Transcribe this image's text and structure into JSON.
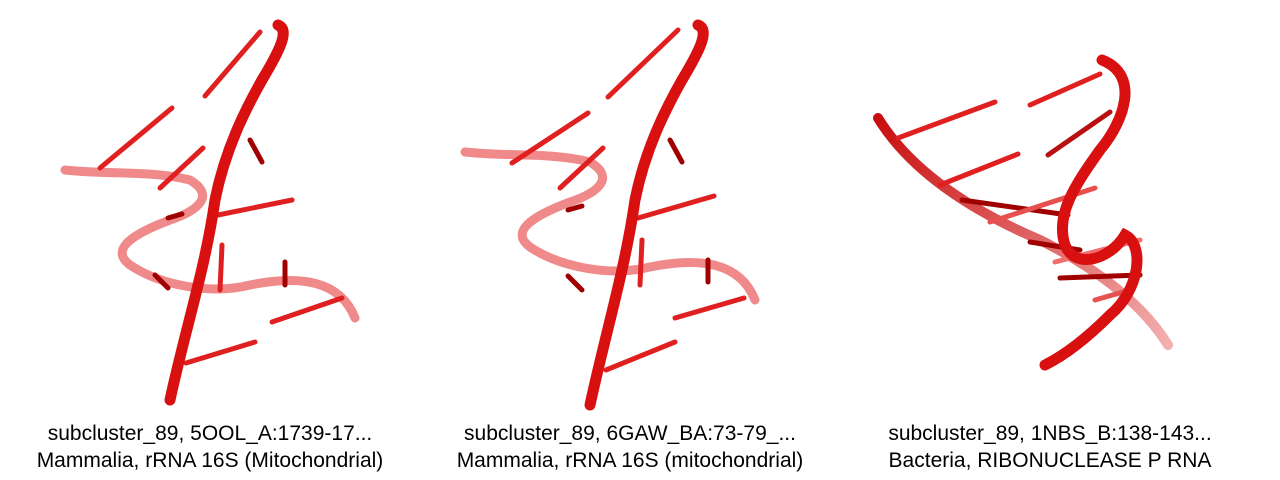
{
  "panels": [
    {
      "line1": "subcluster_89, 5OOL_A:1739-17...",
      "line2": "Mammalia, rRNA 16S (Mitochondrial)"
    },
    {
      "line1": "subcluster_89, 6GAW_BA:73-79_...",
      "line2": "Mammalia, rRNA 16S (mitochondrial)"
    },
    {
      "line1": "subcluster_89, 1NBS_B:138-143...",
      "line2": "Bacteria, RIBONUCLEASE P RNA"
    }
  ],
  "colors": {
    "strand": "#e01010",
    "strand_dark": "#a00000",
    "strand_faded": "#f08a8a",
    "background": "#ffffff"
  }
}
